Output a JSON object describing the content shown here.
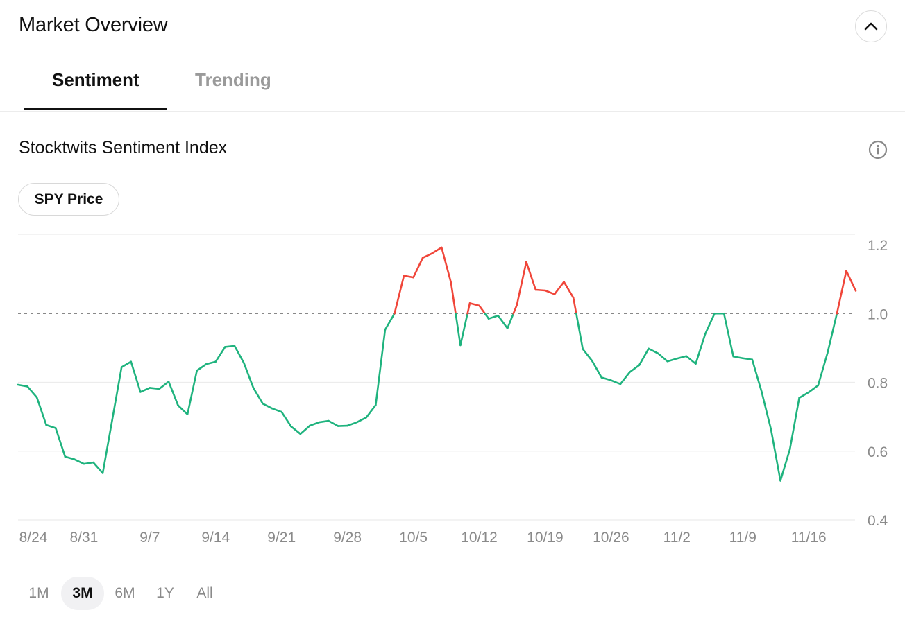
{
  "header": {
    "title": "Market Overview",
    "collapse_icon": "chevron-up-icon"
  },
  "tabs": [
    {
      "label": "Sentiment",
      "active": true
    },
    {
      "label": "Trending",
      "active": false
    }
  ],
  "section": {
    "title": "Stocktwits Sentiment Index",
    "info_icon": "info-icon"
  },
  "toggle": {
    "label": "SPY Price"
  },
  "colors": {
    "bullish": "#1fb37e",
    "bearish": "#f0463a",
    "grid": "#ececec",
    "reference": "#777777",
    "axis_text": "#8a8a8a"
  },
  "chart_data": {
    "type": "line",
    "title": "",
    "xlabel": "",
    "ylabel": "",
    "ylim": [
      0.4,
      1.2
    ],
    "yticks": [
      1.2,
      1.0,
      0.8,
      0.6,
      0.4
    ],
    "ytick_labels": [
      "1.2",
      "1.0",
      "0.8",
      "0.6",
      "0.4"
    ],
    "reference_line": 1.0,
    "grid": true,
    "color_rule": "above 1.0 red, below 1.0 green",
    "x_start": "2020-08-24",
    "xtick_labels": [
      "8/24",
      "8/31",
      "9/7",
      "9/14",
      "9/21",
      "9/28",
      "10/5",
      "10/12",
      "10/19",
      "10/26",
      "11/2",
      "11/9",
      "11/16"
    ],
    "values": [
      0.793,
      0.788,
      0.756,
      0.676,
      0.667,
      0.584,
      0.576,
      0.563,
      0.567,
      0.536,
      0.69,
      0.844,
      0.86,
      0.772,
      0.784,
      0.781,
      0.802,
      0.733,
      0.707,
      0.834,
      0.853,
      0.86,
      0.903,
      0.906,
      0.856,
      0.784,
      0.738,
      0.724,
      0.714,
      0.672,
      0.65,
      0.674,
      0.684,
      0.688,
      0.673,
      0.674,
      0.684,
      0.698,
      0.734,
      0.953,
      1.0,
      1.11,
      1.105,
      1.162,
      1.175,
      1.192,
      1.09,
      0.908,
      1.03,
      1.023,
      0.985,
      0.994,
      0.957,
      1.025,
      1.15,
      1.069,
      1.067,
      1.056,
      1.092,
      1.046,
      0.897,
      0.862,
      0.814,
      0.806,
      0.795,
      0.83,
      0.85,
      0.898,
      0.884,
      0.861,
      0.869,
      0.876,
      0.854,
      0.94,
      1.0,
      1.0,
      0.875,
      0.87,
      0.866,
      0.773,
      0.663,
      0.514,
      0.605,
      0.755,
      0.771,
      0.791,
      0.885,
      1.0,
      1.124,
      1.066
    ]
  },
  "range_buttons": [
    {
      "label": "1M",
      "active": false
    },
    {
      "label": "3M",
      "active": true
    },
    {
      "label": "6M",
      "active": false
    },
    {
      "label": "1Y",
      "active": false
    },
    {
      "label": "All",
      "active": false
    }
  ]
}
